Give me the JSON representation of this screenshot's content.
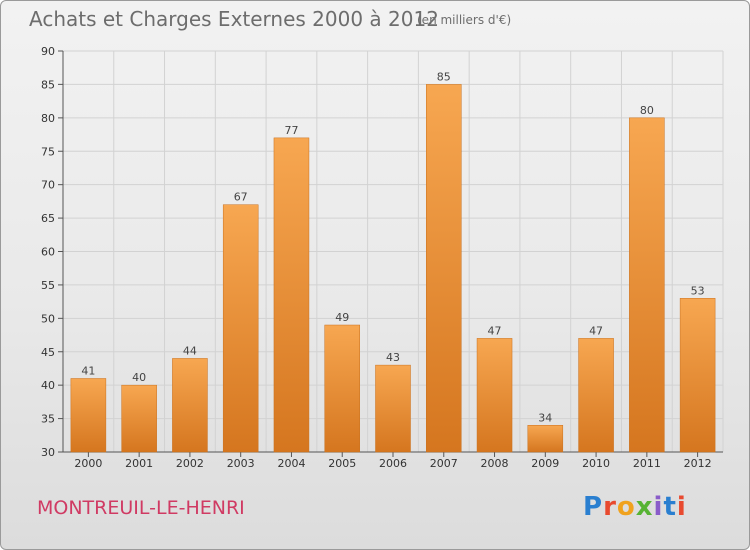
{
  "header": {
    "title": "Achats et Charges Externes 2000 à 2012",
    "subtitle": "(en milliers d'€)"
  },
  "footer": {
    "place": "MONTREUIL-LE-HENRI",
    "brand": "Proxiti",
    "brand_letters": [
      "P",
      "r",
      "o",
      "x",
      "i",
      "t",
      "i"
    ]
  },
  "colors": {
    "bar_top": "#f7a751",
    "bar_bottom": "#d5761f",
    "title": "#6d6d6d",
    "place": "#d03a63"
  },
  "chart_data": {
    "type": "bar",
    "title": "Achats et Charges Externes 2000 à 2012",
    "subtitle": "(en milliers d'€)",
    "xlabel": "",
    "ylabel": "",
    "categories": [
      "2000",
      "2001",
      "2002",
      "2003",
      "2004",
      "2005",
      "2006",
      "2007",
      "2008",
      "2009",
      "2010",
      "2011",
      "2012"
    ],
    "values": [
      41,
      40,
      44,
      67,
      77,
      49,
      43,
      85,
      47,
      34,
      47,
      80,
      53
    ],
    "ylim": [
      30,
      90
    ],
    "yticks": [
      30,
      35,
      40,
      45,
      50,
      55,
      60,
      65,
      70,
      75,
      80,
      85,
      90
    ],
    "grid": true,
    "legend": "none"
  }
}
